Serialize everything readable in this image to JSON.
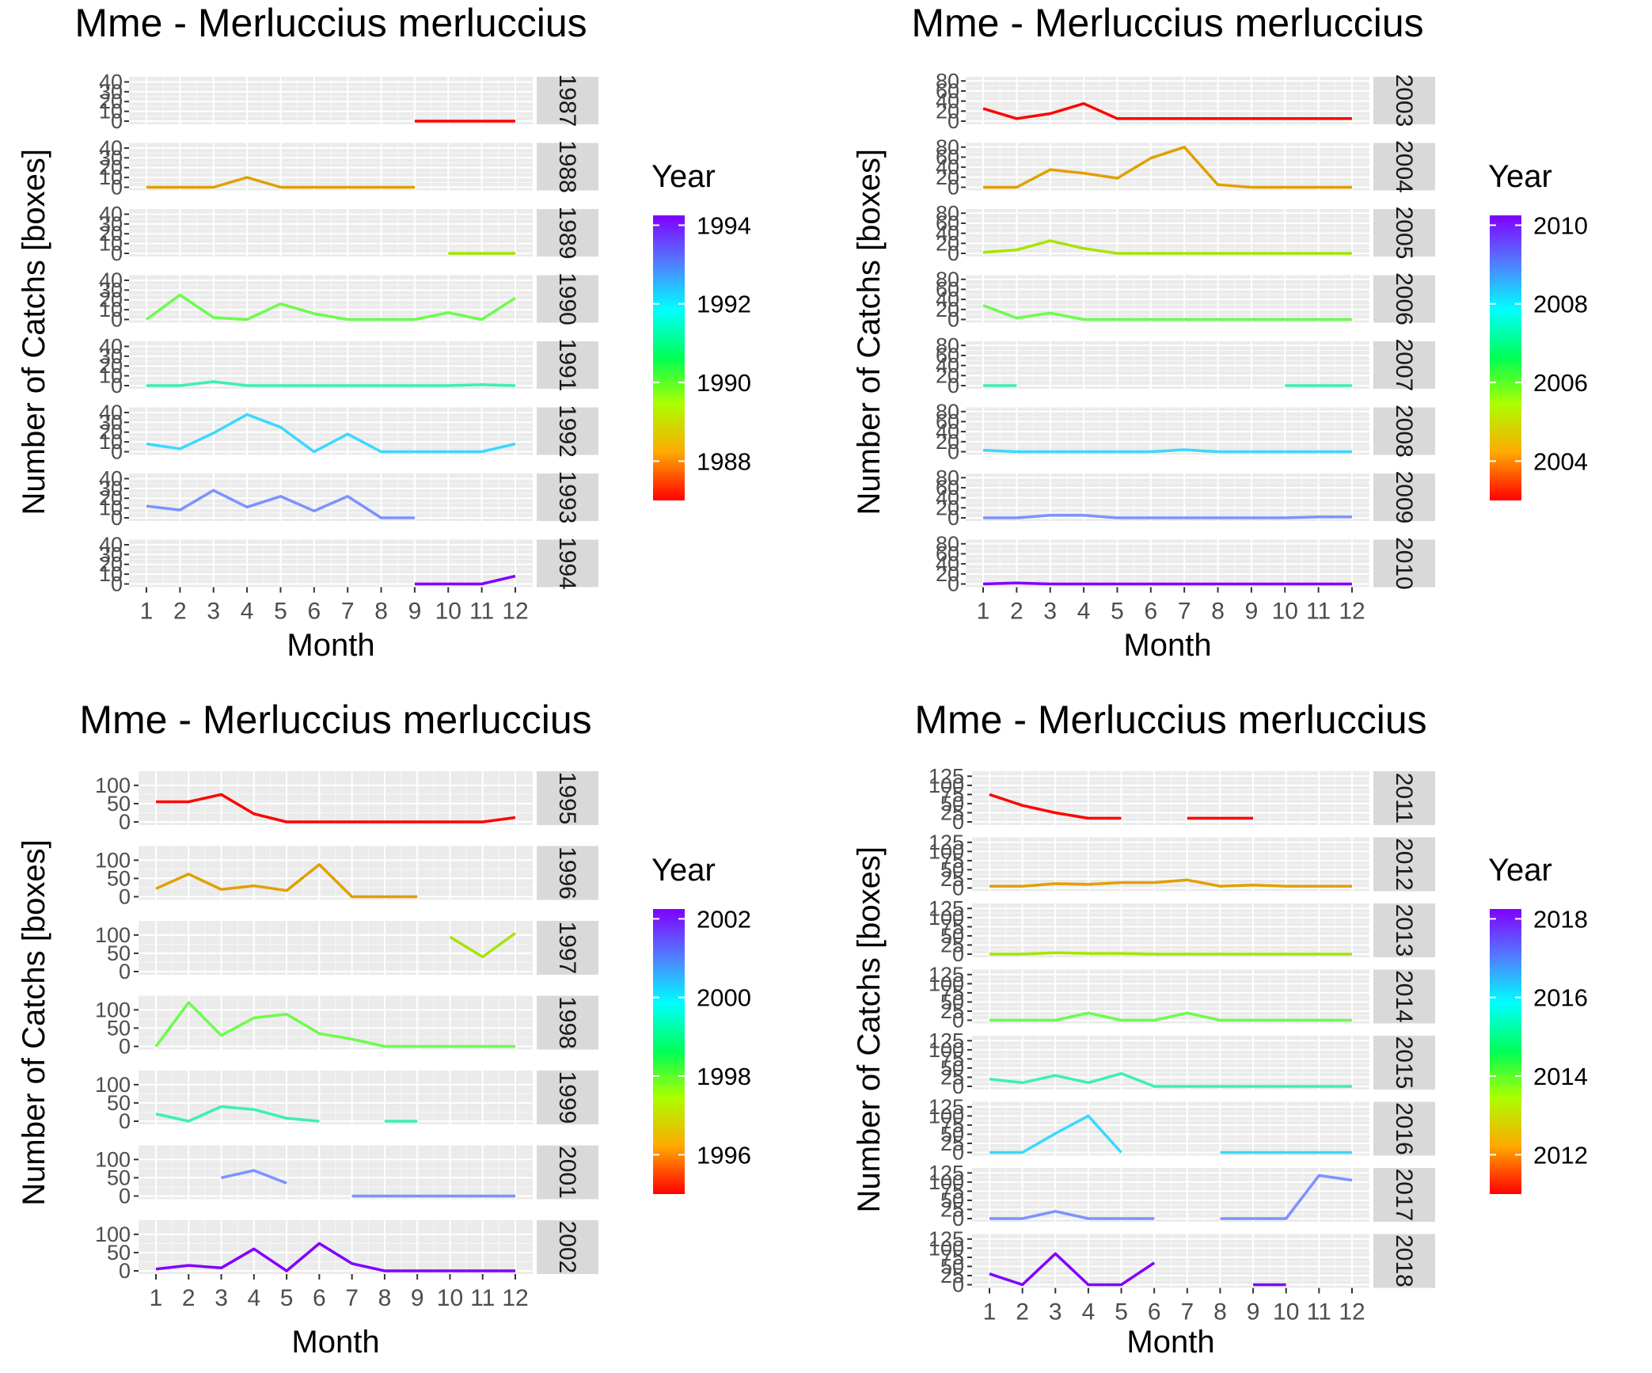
{
  "chart_data": [
    {
      "type": "line",
      "title": "Mme - Merluccius merluccius",
      "xlabel": "Month",
      "ylabel": "Number of Catchs [boxes]",
      "x_ticks": [
        "1",
        "2",
        "3",
        "4",
        "5",
        "6",
        "7",
        "8",
        "9",
        "10",
        "11",
        "12"
      ],
      "y_ticks": [
        0,
        10,
        20,
        30,
        40
      ],
      "ylim": [
        0,
        42
      ],
      "legend": {
        "title": "Year",
        "ticks": [
          1988,
          1990,
          1992,
          1994
        ],
        "range": [
          1987,
          1994.25
        ],
        "position": "right"
      },
      "grid": true,
      "series": [
        {
          "name": "1987",
          "color": "#ff0000",
          "values": [
            null,
            null,
            null,
            null,
            null,
            null,
            null,
            null,
            0,
            0,
            0,
            0
          ]
        },
        {
          "name": "1988",
          "color": "#e0a000",
          "values": [
            0,
            0,
            0,
            10,
            0,
            0,
            0,
            0,
            0,
            null,
            null,
            null
          ]
        },
        {
          "name": "1989",
          "color": "#a6e400",
          "values": [
            null,
            null,
            null,
            null,
            null,
            null,
            null,
            null,
            null,
            0,
            0,
            0
          ]
        },
        {
          "name": "1990",
          "color": "#6cfc4e",
          "values": [
            0,
            25,
            2,
            0,
            16,
            6,
            0,
            0,
            0,
            7,
            0,
            22
          ]
        },
        {
          "name": "1991",
          "color": "#3cf0b0",
          "values": [
            0,
            0,
            4,
            0,
            0,
            0,
            0,
            0,
            0,
            0,
            1,
            0
          ]
        },
        {
          "name": "1992",
          "color": "#3ad8ff",
          "values": [
            8,
            3,
            19,
            38,
            25,
            0,
            18,
            0,
            0,
            0,
            0,
            8
          ]
        },
        {
          "name": "1993",
          "color": "#7c92ff",
          "values": [
            12,
            8,
            28,
            11,
            22,
            7,
            22,
            0,
            0,
            null,
            null,
            null
          ]
        },
        {
          "name": "1994",
          "color": "#8000ff",
          "values": [
            null,
            null,
            null,
            null,
            null,
            null,
            null,
            null,
            0,
            0,
            0,
            8
          ]
        }
      ]
    },
    {
      "type": "line",
      "title": "Mme - Merluccius merluccius",
      "xlabel": "Month",
      "ylabel": "Number of Catchs [boxes]",
      "x_ticks": [
        "1",
        "2",
        "3",
        "4",
        "5",
        "6",
        "7",
        "8",
        "9",
        "10",
        "11",
        "12"
      ],
      "y_ticks": [
        0,
        20,
        40,
        60,
        80
      ],
      "ylim": [
        0,
        82
      ],
      "legend": {
        "title": "Year",
        "ticks": [
          2004,
          2006,
          2008,
          2010
        ],
        "range": [
          2003,
          2010.25
        ],
        "position": "right"
      },
      "grid": true,
      "series": [
        {
          "name": "2003",
          "color": "#ff0000",
          "values": [
            25,
            5,
            15,
            35,
            5,
            5,
            5,
            5,
            5,
            5,
            5,
            5
          ]
        },
        {
          "name": "2004",
          "color": "#e0a000",
          "values": [
            0,
            0,
            35,
            28,
            18,
            58,
            80,
            5,
            0,
            0,
            0,
            0
          ]
        },
        {
          "name": "2005",
          "color": "#a6e400",
          "values": [
            2,
            7,
            25,
            10,
            0,
            0,
            0,
            0,
            0,
            0,
            0,
            0
          ]
        },
        {
          "name": "2006",
          "color": "#6cfc4e",
          "values": [
            28,
            3,
            13,
            0,
            0,
            0,
            0,
            0,
            0,
            0,
            0,
            0
          ]
        },
        {
          "name": "2007",
          "color": "#3cf0b0",
          "values": [
            0,
            0,
            null,
            null,
            null,
            null,
            null,
            null,
            null,
            0,
            0,
            0
          ]
        },
        {
          "name": "2008",
          "color": "#3ad8ff",
          "values": [
            3,
            0,
            0,
            0,
            0,
            0,
            4,
            0,
            0,
            0,
            0,
            0
          ]
        },
        {
          "name": "2009",
          "color": "#7c92ff",
          "values": [
            0,
            0,
            5,
            5,
            0,
            0,
            0,
            0,
            0,
            0,
            2,
            2
          ]
        },
        {
          "name": "2010",
          "color": "#8000ff",
          "values": [
            0,
            2,
            0,
            0,
            0,
            0,
            0,
            0,
            0,
            0,
            0,
            0
          ]
        }
      ]
    },
    {
      "type": "line",
      "title": "Mme - Merluccius merluccius",
      "xlabel": "Month",
      "ylabel": "Number of Catchs [boxes]",
      "x_ticks": [
        "1",
        "2",
        "3",
        "4",
        "5",
        "6",
        "7",
        "8",
        "9",
        "10",
        "11",
        "12"
      ],
      "y_ticks": [
        0,
        50,
        100
      ],
      "ylim": [
        0,
        130
      ],
      "legend": {
        "title": "Year",
        "ticks": [
          1996,
          1998,
          2000,
          2002
        ],
        "range": [
          1995,
          2002.25
        ],
        "position": "right"
      },
      "grid": true,
      "series": [
        {
          "name": "1995",
          "color": "#ff0000",
          "values": [
            55,
            55,
            75,
            22,
            0,
            0,
            0,
            0,
            0,
            0,
            0,
            12
          ]
        },
        {
          "name": "1996",
          "color": "#e0a000",
          "values": [
            22,
            62,
            20,
            30,
            17,
            88,
            0,
            0,
            0,
            null,
            null,
            null
          ]
        },
        {
          "name": "1997",
          "color": "#a6e400",
          "values": [
            null,
            null,
            null,
            null,
            null,
            null,
            null,
            null,
            null,
            95,
            40,
            105
          ]
        },
        {
          "name": "1998",
          "color": "#6cfc4e",
          "values": [
            0,
            120,
            30,
            78,
            88,
            35,
            20,
            0,
            0,
            0,
            0,
            0
          ]
        },
        {
          "name": "1999",
          "color": "#3cf0b0",
          "values": [
            20,
            0,
            40,
            32,
            8,
            0,
            null,
            0,
            0,
            null,
            null,
            null
          ]
        },
        {
          "name": "2001",
          "color": "#7c92ff",
          "values": [
            null,
            null,
            50,
            70,
            35,
            null,
            0,
            0,
            0,
            0,
            0,
            0
          ]
        },
        {
          "name": "2002",
          "color": "#8000ff",
          "values": [
            5,
            15,
            8,
            60,
            0,
            75,
            20,
            0,
            0,
            0,
            0,
            0
          ]
        }
      ]
    },
    {
      "type": "line",
      "title": "Mme - Merluccius merluccius",
      "xlabel": "Month",
      "ylabel": "Number of Catchs [boxes]",
      "x_ticks": [
        "1",
        "2",
        "3",
        "4",
        "5",
        "6",
        "7",
        "8",
        "9",
        "10",
        "11",
        "12"
      ],
      "y_ticks": [
        0,
        25,
        50,
        75,
        100,
        125
      ],
      "ylim": [
        0,
        130
      ],
      "legend": {
        "title": "Year",
        "ticks": [
          2012,
          2014,
          2016,
          2018
        ],
        "range": [
          2011,
          2018.25
        ],
        "position": "right"
      },
      "grid": true,
      "series": [
        {
          "name": "2011",
          "color": "#ff0000",
          "values": [
            75,
            45,
            25,
            10,
            10,
            null,
            10,
            10,
            10,
            null,
            null,
            null
          ]
        },
        {
          "name": "2012",
          "color": "#e0a000",
          "values": [
            5,
            5,
            12,
            10,
            15,
            15,
            22,
            5,
            8,
            5,
            5,
            5
          ]
        },
        {
          "name": "2013",
          "color": "#a6e400",
          "values": [
            0,
            0,
            4,
            2,
            2,
            0,
            0,
            0,
            0,
            0,
            0,
            0
          ]
        },
        {
          "name": "2014",
          "color": "#6cfc4e",
          "values": [
            0,
            0,
            0,
            20,
            0,
            0,
            20,
            0,
            0,
            0,
            0,
            0
          ]
        },
        {
          "name": "2015",
          "color": "#3cf0b0",
          "values": [
            20,
            10,
            30,
            10,
            35,
            0,
            0,
            0,
            0,
            0,
            0,
            0
          ]
        },
        {
          "name": "2016",
          "color": "#3ad8ff",
          "values": [
            0,
            0,
            52,
            100,
            0,
            null,
            null,
            0,
            0,
            0,
            0,
            0
          ]
        },
        {
          "name": "2017",
          "color": "#7c92ff",
          "values": [
            0,
            0,
            20,
            0,
            0,
            0,
            null,
            0,
            0,
            0,
            118,
            105
          ]
        },
        {
          "name": "2018",
          "color": "#8000ff",
          "values": [
            30,
            0,
            85,
            0,
            0,
            60,
            null,
            null,
            0,
            0,
            null,
            null
          ]
        }
      ]
    }
  ]
}
